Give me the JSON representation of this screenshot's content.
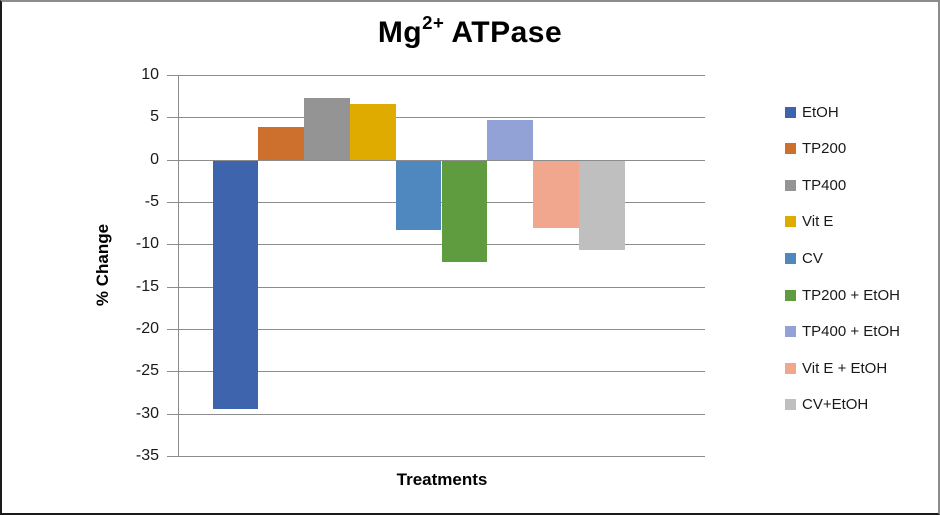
{
  "chart_data": {
    "type": "bar",
    "title": {
      "base": "Mg",
      "superscript": "2+",
      "rest": "ATPase"
    },
    "xlabel": "Treatments",
    "ylabel": "% Change",
    "ylim": [
      -35,
      10
    ],
    "yticks": [
      10,
      5,
      0,
      -5,
      -10,
      -15,
      -20,
      -25,
      -30,
      -35
    ],
    "grid": true,
    "legend_position": "right",
    "series": [
      {
        "name": "EtOH",
        "value": -29.3,
        "color": "#3D64AC"
      },
      {
        "name": "TP200",
        "value": 3.9,
        "color": "#CD6F2D"
      },
      {
        "name": "TP400",
        "value": 7.3,
        "color": "#949494"
      },
      {
        "name": "Vit E",
        "value": 6.6,
        "color": "#DFAB00"
      },
      {
        "name": "CV",
        "value": -8.2,
        "color": "#4E88BE"
      },
      {
        "name": "TP200 + EtOH",
        "value": -12.0,
        "color": "#5F9C3F"
      },
      {
        "name": "TP400 + EtOH",
        "value": 4.7,
        "color": "#92A2D6"
      },
      {
        "name": "Vit E + EtOH",
        "value": -7.9,
        "color": "#F0A78E"
      },
      {
        "name": "CV+EtOH",
        "value": -10.5,
        "color": "#BFBFBF"
      }
    ]
  },
  "colors": {
    "gridline": "#8C8C8C",
    "axis_line": "#8C8C8C",
    "text": "#1A1A1A"
  }
}
